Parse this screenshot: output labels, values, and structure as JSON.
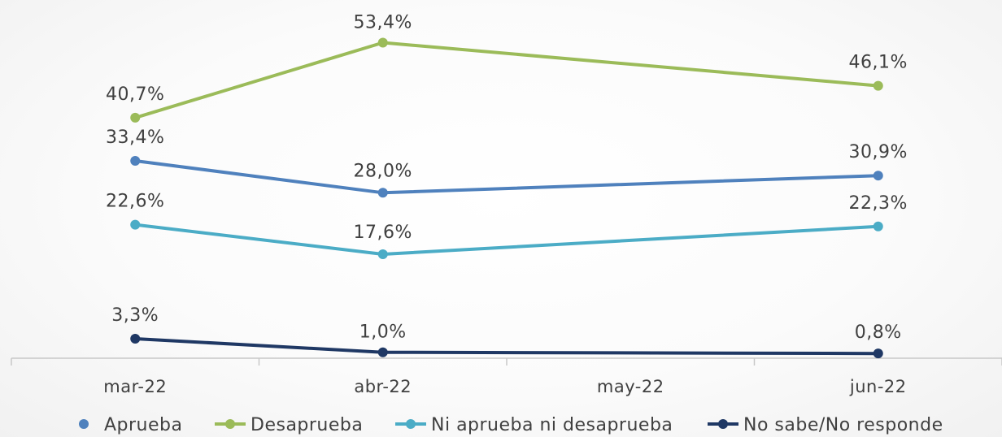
{
  "chart_data": {
    "type": "line",
    "title": "",
    "xlabel": "",
    "ylabel": "",
    "categories": [
      "mar-22",
      "abr-22",
      "may-22",
      "jun-22"
    ],
    "ylim": [
      0,
      60
    ],
    "grid": false,
    "legend_position": "bottom",
    "series": [
      {
        "name": "Aprueba",
        "color": "#4f81bd",
        "values": [
          33.4,
          28.0,
          null,
          30.9
        ],
        "labels": [
          "33,4%",
          "28,0%",
          null,
          "30,9%"
        ]
      },
      {
        "name": "Desaprueba",
        "color": "#9bbb59",
        "values": [
          40.7,
          53.4,
          null,
          46.1
        ],
        "labels": [
          "40,7%",
          "53,4%",
          null,
          "46,1%"
        ]
      },
      {
        "name": "Ni aprueba ni desaprueba",
        "color": "#4bacc6",
        "values": [
          22.6,
          17.6,
          null,
          22.3
        ],
        "labels": [
          "22,6%",
          "17,6%",
          null,
          "22,3%"
        ]
      },
      {
        "name": "No sabe/No responde",
        "color": "#1f3864",
        "values": [
          3.3,
          1.0,
          null,
          0.8
        ],
        "labels": [
          "3,3%",
          "1,0%",
          null,
          "0,8%"
        ]
      }
    ]
  }
}
